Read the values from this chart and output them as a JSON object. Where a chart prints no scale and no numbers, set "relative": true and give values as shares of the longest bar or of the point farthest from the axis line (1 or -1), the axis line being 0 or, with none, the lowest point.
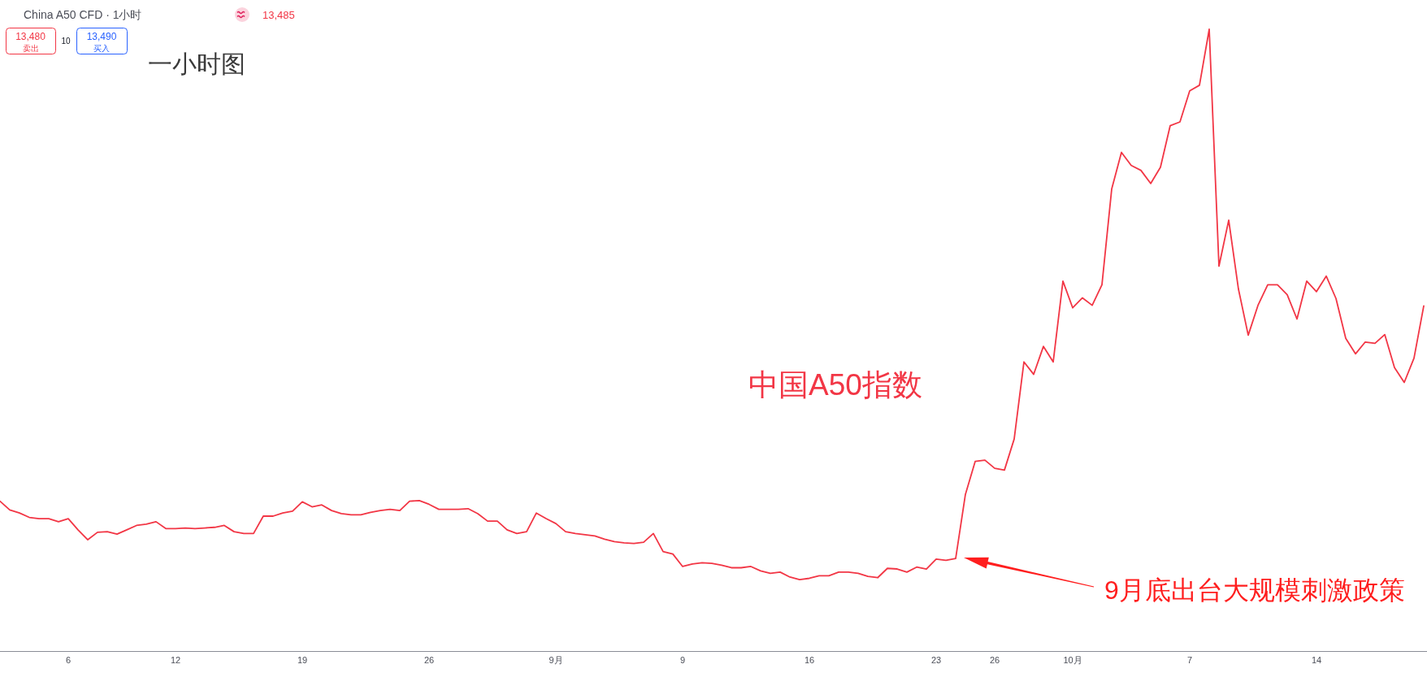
{
  "chart_data": {
    "type": "line",
    "title": "一小时图",
    "subtitle": "China A50 CFD · 1小时",
    "annotations": [
      "13,485",
      "13,480",
      "卖出",
      "10",
      "13,490",
      "买入",
      "9月底出台大规模刺激政策"
    ],
    "relative": true,
    "categories": [
      null,
      null,
      null,
      null,
      null,
      null,
      null,
      "6",
      null,
      null,
      null,
      null,
      null,
      null,
      null,
      null,
      null,
      null,
      "12",
      null,
      null,
      null,
      null,
      null,
      null,
      null,
      null,
      null,
      null,
      null,
      null,
      "19",
      null,
      null,
      null,
      null,
      null,
      null,
      null,
      null,
      null,
      null,
      null,
      null,
      "26",
      null,
      null,
      null,
      null,
      null,
      null,
      null,
      null,
      null,
      null,
      null,
      null,
      "9月",
      null,
      null,
      null,
      null,
      null,
      null,
      null,
      null,
      null,
      null,
      null,
      null,
      "9",
      null,
      null,
      null,
      null,
      null,
      null,
      null,
      null,
      null,
      null,
      null,
      null,
      "16",
      null,
      null,
      null,
      null,
      null,
      null,
      null,
      null,
      null,
      null,
      null,
      null,
      "23",
      null,
      null,
      null,
      null,
      null,
      "26",
      null,
      null,
      null,
      null,
      null,
      null,
      null,
      "10月",
      null,
      null,
      null,
      null,
      null,
      null,
      null,
      null,
      null,
      null,
      null,
      "7",
      null,
      null,
      null,
      null,
      null,
      null,
      null,
      null,
      null,
      null,
      null,
      null,
      "14",
      null,
      null,
      null,
      null,
      null,
      null,
      null,
      null,
      null,
      null,
      null
    ],
    "series": [
      {
        "name": "中国A50指数",
        "color": "#f23645",
        "values": [
          0.241,
          0.227,
          0.222,
          0.215,
          0.213,
          0.213,
          0.208,
          0.213,
          0.195,
          0.179,
          0.191,
          0.192,
          0.188,
          0.195,
          0.202,
          0.204,
          0.208,
          0.197,
          0.197,
          0.198,
          0.197,
          0.198,
          0.199,
          0.202,
          0.192,
          0.189,
          0.189,
          0.217,
          0.217,
          0.222,
          0.225,
          0.24,
          0.232,
          0.235,
          0.226,
          0.221,
          0.219,
          0.219,
          0.223,
          0.226,
          0.228,
          0.226,
          0.241,
          0.242,
          0.236,
          0.228,
          0.228,
          0.228,
          0.229,
          0.221,
          0.209,
          0.209,
          0.195,
          0.189,
          0.192,
          0.222,
          0.213,
          0.205,
          0.192,
          0.189,
          0.187,
          0.185,
          0.18,
          0.176,
          0.174,
          0.173,
          0.175,
          0.189,
          0.16,
          0.156,
          0.136,
          0.14,
          0.142,
          0.141,
          0.138,
          0.134,
          0.134,
          0.136,
          0.129,
          0.125,
          0.127,
          0.119,
          0.115,
          0.117,
          0.121,
          0.121,
          0.127,
          0.127,
          0.125,
          0.12,
          0.118,
          0.133,
          0.132,
          0.127,
          0.135,
          0.132,
          0.148,
          0.146,
          0.149,
          0.252,
          0.305,
          0.307,
          0.294,
          0.291,
          0.341,
          0.465,
          0.445,
          0.49,
          0.465,
          0.595,
          0.552,
          0.568,
          0.556,
          0.589,
          0.743,
          0.802,
          0.781,
          0.773,
          0.752,
          0.778,
          0.845,
          0.851,
          0.901,
          0.91,
          1,
          0.619,
          0.693,
          0.582,
          0.508,
          0.556,
          0.589,
          0.589,
          0.573,
          0.534,
          0.595,
          0.578,
          0.603,
          0.567,
          0.503,
          0.478,
          0.497,
          0.495,
          0.509,
          0.456,
          0.432,
          0.471,
          0.555
        ]
      }
    ]
  }
}
